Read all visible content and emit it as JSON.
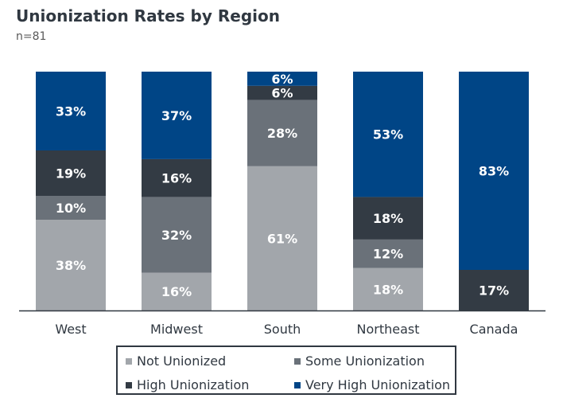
{
  "title": "Unionization Rates by Region",
  "subtitle": "n=81",
  "chart_data": {
    "type": "bar",
    "stacked": true,
    "percent_stacked": true,
    "categories": [
      "West",
      "Midwest",
      "South",
      "Northeast",
      "Canada"
    ],
    "series": [
      {
        "name": "Not Unionized",
        "color": "#a2a6ab",
        "values": [
          38,
          16,
          61,
          18,
          0
        ]
      },
      {
        "name": "Some Unionization",
        "color": "#6a7179",
        "values": [
          10,
          32,
          28,
          12,
          0
        ]
      },
      {
        "name": "High Unionization",
        "color": "#333b44",
        "values": [
          19,
          16,
          6,
          18,
          17
        ]
      },
      {
        "name": "Very High Unionization",
        "color": "#004586",
        "values": [
          33,
          37,
          6,
          53,
          83
        ]
      }
    ],
    "data_label_suffix": "%",
    "legend_position": "bottom",
    "grid": false
  }
}
